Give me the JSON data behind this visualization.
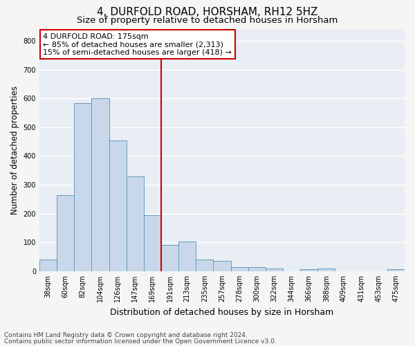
{
  "title": "4, DURFOLD ROAD, HORSHAM, RH12 5HZ",
  "subtitle": "Size of property relative to detached houses in Horsham",
  "xlabel": "Distribution of detached houses by size in Horsham",
  "ylabel": "Number of detached properties",
  "categories": [
    "38sqm",
    "60sqm",
    "82sqm",
    "104sqm",
    "126sqm",
    "147sqm",
    "169sqm",
    "191sqm",
    "213sqm",
    "235sqm",
    "257sqm",
    "278sqm",
    "300sqm",
    "322sqm",
    "344sqm",
    "366sqm",
    "388sqm",
    "409sqm",
    "431sqm",
    "453sqm",
    "475sqm"
  ],
  "values": [
    40,
    265,
    585,
    600,
    455,
    330,
    195,
    90,
    102,
    40,
    35,
    15,
    15,
    10,
    0,
    7,
    10,
    0,
    0,
    0,
    7
  ],
  "bar_color": "#c8d8ea",
  "bar_edge_color": "#6699bb",
  "background_color": "#e8eef4",
  "grid_color": "#ffffff",
  "vline_x": 6.5,
  "vline_color": "#cc0000",
  "annotation_text": "4 DURFOLD ROAD: 175sqm\n← 85% of detached houses are smaller (2,313)\n15% of semi-detached houses are larger (418) →",
  "annotation_box_facecolor": "#ffffff",
  "annotation_box_edgecolor": "#cc0000",
  "ylim": [
    0,
    840
  ],
  "yticks": [
    0,
    100,
    200,
    300,
    400,
    500,
    600,
    700,
    800
  ],
  "footer_line1": "Contains HM Land Registry data © Crown copyright and database right 2024.",
  "footer_line2": "Contains public sector information licensed under the Open Government Licence v3.0.",
  "title_fontsize": 11,
  "subtitle_fontsize": 9.5,
  "xlabel_fontsize": 9,
  "ylabel_fontsize": 8.5,
  "tick_fontsize": 7,
  "annotation_fontsize": 8,
  "footer_fontsize": 6.5,
  "fig_facecolor": "#f5f5f5"
}
